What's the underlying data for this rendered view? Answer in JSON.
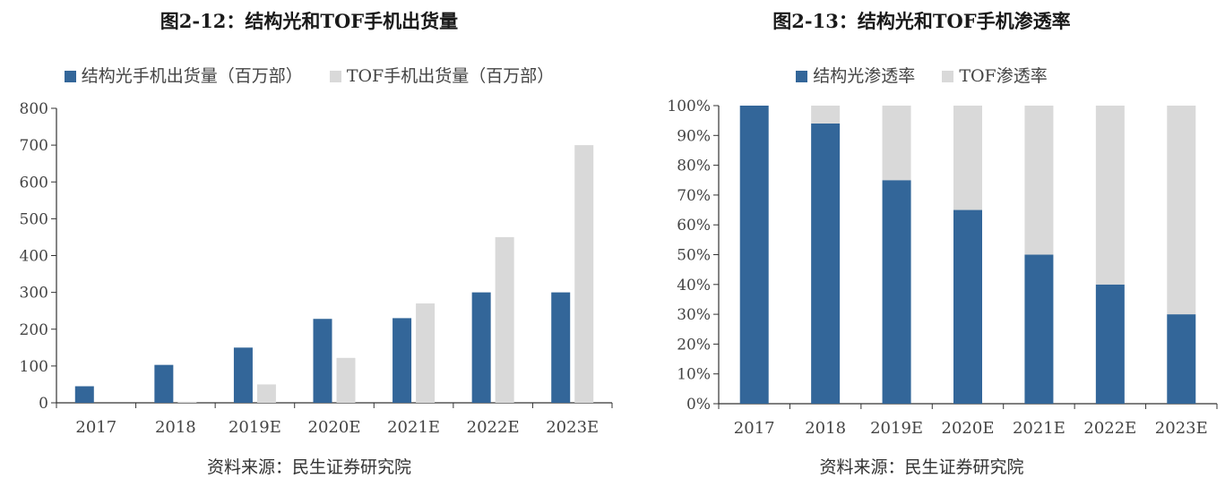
{
  "colors": {
    "series1": "#336699",
    "series2": "#d9d9d9",
    "axis": "#333333"
  },
  "footer_text": "资料来源：民生证券研究院",
  "chart_data": [
    {
      "type": "bar",
      "title": "图2-12：结构光和TOF手机出货量",
      "categories": [
        "2017",
        "2018",
        "2019E",
        "2020E",
        "2021E",
        "2022E",
        "2023E"
      ],
      "series": [
        {
          "name": "结构光手机出货量（百万部）",
          "values": [
            45,
            103,
            150,
            228,
            230,
            300,
            300
          ]
        },
        {
          "name": "TOF手机出货量（百万部）",
          "values": [
            0,
            3,
            50,
            122,
            270,
            450,
            700
          ]
        }
      ],
      "ylim": [
        0,
        800
      ],
      "yticks": [
        "0",
        "100",
        "200",
        "300",
        "400",
        "500",
        "600",
        "700",
        "800"
      ],
      "legend_position": "top",
      "grid": false
    },
    {
      "type": "bar",
      "stacked": true,
      "title": "图2-13：结构光和TOF手机渗透率",
      "categories": [
        "2017",
        "2018",
        "2019E",
        "2020E",
        "2021E",
        "2022E",
        "2023E"
      ],
      "series": [
        {
          "name": "结构光渗透率",
          "values": [
            100,
            94,
            75,
            65,
            50,
            40,
            30
          ]
        },
        {
          "name": "TOF渗透率",
          "values": [
            0,
            6,
            25,
            35,
            50,
            60,
            70
          ]
        }
      ],
      "ylim": [
        0,
        100
      ],
      "yticks": [
        "0%",
        "10%",
        "20%",
        "30%",
        "40%",
        "50%",
        "60%",
        "70%",
        "80%",
        "90%",
        "100%"
      ],
      "legend_position": "top",
      "grid": false
    }
  ]
}
